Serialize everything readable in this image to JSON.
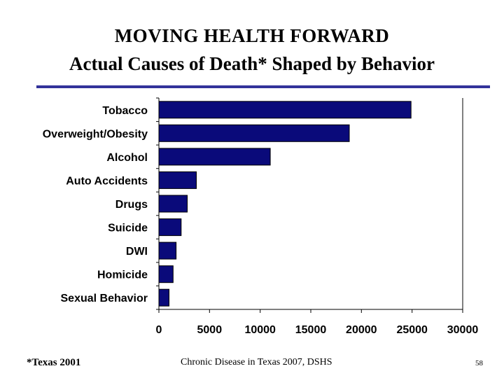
{
  "slide": {
    "title": "MOVING HEALTH FORWARD",
    "subtitle": "Actual Causes of Death* Shaped by Behavior",
    "footnote": "*Texas 2001",
    "source": "Chronic Disease in Texas 2007, DSHS",
    "page_number": "58",
    "rule_color": "#33339a"
  },
  "chart_data": {
    "type": "bar",
    "orientation": "horizontal",
    "categories": [
      "Tobacco",
      "Overweight/Obesity",
      "Alcohol",
      "Auto Accidents",
      "Drugs",
      "Suicide",
      "DWI",
      "Homicide",
      "Sexual Behavior"
    ],
    "values": [
      24900,
      18800,
      11000,
      3700,
      2800,
      2200,
      1700,
      1400,
      1000
    ],
    "xlim": [
      0,
      30000
    ],
    "xticks": [
      "0",
      "5000",
      "10000",
      "15000",
      "20000",
      "25000",
      "30000"
    ],
    "grid": false,
    "bar_color": "#0a0a7a"
  }
}
